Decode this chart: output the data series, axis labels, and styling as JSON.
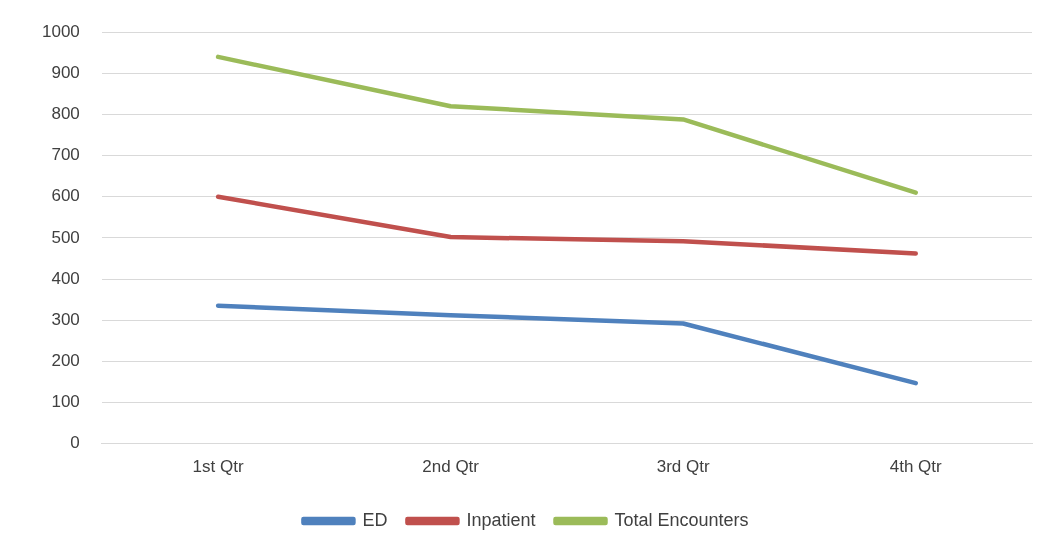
{
  "chart_data": {
    "type": "line",
    "categories": [
      "1st Qtr",
      "2nd Qtr",
      "3rd Qtr",
      "4th Qtr"
    ],
    "series": [
      {
        "name": "ED",
        "color": "#4f81bd",
        "values": [
          335,
          312,
          292,
          147
        ]
      },
      {
        "name": "Inpatient",
        "color": "#c0504d",
        "values": [
          600,
          502,
          492,
          462
        ]
      },
      {
        "name": "Total Encounters",
        "color": "#9bbb59",
        "values": [
          940,
          820,
          788,
          610
        ]
      }
    ],
    "ylim": [
      0,
      1000
    ],
    "yticks": [
      0,
      100,
      200,
      300,
      400,
      500,
      600,
      700,
      800,
      900,
      1000
    ],
    "grid": "y",
    "legend": "bottom",
    "marker": "none",
    "line_style": "solid"
  }
}
